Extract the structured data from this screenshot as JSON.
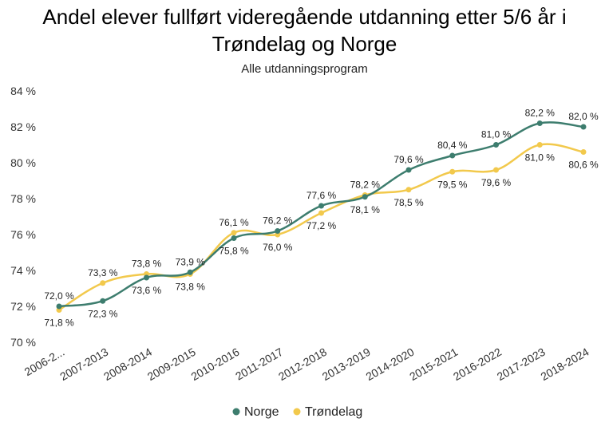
{
  "chart_data": {
    "type": "line",
    "title_line1": "Andel elever fullført videregående utdanning etter 5/6 år i",
    "title_line2": "Trøndelag og Norge",
    "subtitle": "Alle utdanningsprogram",
    "categories": [
      "2006-2...",
      "2007-2013",
      "2008-2014",
      "2009-2015",
      "2010-2016",
      "2011-2017",
      "2012-2018",
      "2013-2019",
      "2014-2020",
      "2015-2021",
      "2016-2022",
      "2017-2023",
      "2018-2024"
    ],
    "y_ticks": [
      "70 %",
      "72 %",
      "74 %",
      "76 %",
      "78 %",
      "80 %",
      "82 %",
      "84 %"
    ],
    "ylim": [
      70,
      84
    ],
    "grid": false,
    "legend_position": "bottom",
    "series": [
      {
        "name": "Norge",
        "color": "#3d7d6e",
        "values": [
          72.0,
          72.3,
          73.6,
          73.9,
          75.8,
          76.2,
          77.6,
          78.1,
          79.6,
          80.4,
          81.0,
          82.2,
          82.0
        ],
        "labels": [
          "72,0 %",
          "72,3 %",
          "73,6 %",
          "73,9 %",
          "75,8 %",
          "76,2 %",
          "77,6 %",
          "78,1 %",
          "79,6 %",
          "80,4 %",
          "81,0 %",
          "82,2 %",
          "82,0 %"
        ]
      },
      {
        "name": "Trøndelag",
        "color": "#f2c94c",
        "values": [
          71.8,
          73.3,
          73.8,
          73.8,
          76.1,
          76.0,
          77.2,
          78.2,
          78.5,
          79.5,
          79.6,
          81.0,
          80.6
        ],
        "labels": [
          "71,8 %",
          "73,3 %",
          "73,8 %",
          "73,8 %",
          "76,1 %",
          "76,0 %",
          "77,2 %",
          "78,2 %",
          "78,5 %",
          "79,5 %",
          "79,6 %",
          "81,0 %",
          "80,6 %"
        ]
      }
    ]
  }
}
